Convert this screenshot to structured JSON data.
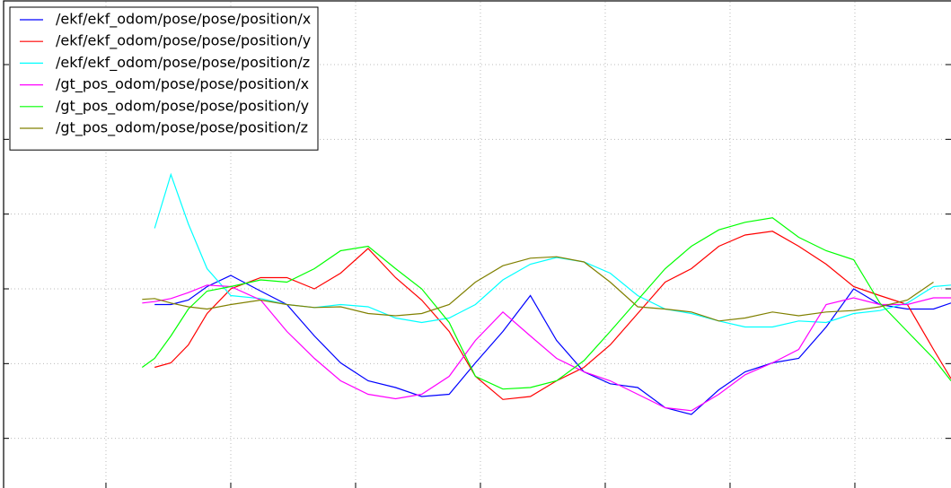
{
  "chart_data": {
    "type": "line",
    "x": [
      1.29,
      1.39,
      1.52,
      1.66,
      1.81,
      2.0,
      2.24,
      2.45,
      2.67,
      2.88,
      3.1,
      3.32,
      3.53,
      3.75,
      3.96,
      4.18,
      4.4,
      4.61,
      4.83,
      5.04,
      5.26,
      5.48,
      5.69,
      5.91,
      6.12,
      6.34,
      6.55,
      6.77,
      6.99,
      7.2,
      7.42,
      7.63,
      7.77
    ],
    "series": [
      {
        "name": "/ekf/ekf_odom/pose/pose/position/x",
        "color": "#0000ff",
        "values": [
          null,
          1.79,
          1.79,
          1.85,
          2.03,
          2.18,
          1.97,
          1.79,
          1.37,
          1.01,
          0.77,
          0.68,
          0.56,
          0.59,
          1.01,
          1.43,
          1.91,
          1.31,
          0.89,
          0.73,
          0.68,
          0.41,
          0.32,
          0.65,
          0.89,
          1.01,
          1.07,
          1.49,
          2.0,
          1.79,
          1.73,
          1.73,
          1.81
        ]
      },
      {
        "name": "/ekf/ekf_odom/pose/pose/position/y",
        "color": "#ff0000",
        "values": [
          null,
          0.95,
          1.01,
          1.25,
          1.67,
          2.0,
          2.15,
          2.15,
          2.0,
          2.21,
          2.54,
          2.15,
          1.85,
          1.43,
          0.83,
          0.52,
          0.56,
          0.77,
          0.95,
          1.25,
          1.67,
          2.09,
          2.27,
          2.57,
          2.72,
          2.77,
          2.57,
          2.33,
          2.03,
          1.91,
          1.79,
          1.19,
          0.8
        ]
      },
      {
        "name": "/ekf/ekf_odom/pose/pose/position/z",
        "color": "#00ffff",
        "values": [
          null,
          2.81,
          3.53,
          2.87,
          2.27,
          1.91,
          1.87,
          1.79,
          1.75,
          1.79,
          1.76,
          1.61,
          1.55,
          1.61,
          1.79,
          2.12,
          2.33,
          2.42,
          2.36,
          2.21,
          1.91,
          1.73,
          1.67,
          1.57,
          1.49,
          1.49,
          1.57,
          1.55,
          1.67,
          1.71,
          1.81,
          2.03,
          2.05
        ]
      },
      {
        "name": "/gt_pos_odom/pose/pose/position/x",
        "color": "#ff00ff",
        "values": [
          1.81,
          1.83,
          1.87,
          1.95,
          2.05,
          2.03,
          1.85,
          1.43,
          1.07,
          0.77,
          0.59,
          0.53,
          0.59,
          0.83,
          1.31,
          1.69,
          1.37,
          1.07,
          0.89,
          0.77,
          0.59,
          0.41,
          0.37,
          0.59,
          0.85,
          1.01,
          1.19,
          1.79,
          1.88,
          1.79,
          1.79,
          1.88,
          1.88
        ]
      },
      {
        "name": "/gt_pos_odom/pose/pose/position/y",
        "color": "#00ff00",
        "values": [
          0.95,
          1.07,
          1.37,
          1.73,
          1.97,
          2.03,
          2.12,
          2.09,
          2.27,
          2.51,
          2.57,
          2.27,
          2.0,
          1.55,
          0.83,
          0.66,
          0.68,
          0.77,
          1.04,
          1.43,
          1.85,
          2.27,
          2.57,
          2.79,
          2.89,
          2.95,
          2.69,
          2.51,
          2.39,
          1.81,
          1.43,
          1.07,
          0.77
        ]
      },
      {
        "name": "/gt_pos_odom/pose/pose/position/z",
        "color": "#808000",
        "values": [
          1.86,
          1.87,
          1.81,
          1.76,
          1.73,
          1.79,
          1.85,
          1.79,
          1.75,
          1.76,
          1.67,
          1.64,
          1.67,
          1.79,
          2.09,
          2.31,
          2.41,
          2.43,
          2.36,
          2.09,
          1.76,
          1.73,
          1.69,
          1.57,
          1.61,
          1.69,
          1.64,
          1.69,
          1.71,
          1.76,
          1.85,
          2.09,
          null
        ]
      }
    ],
    "xlim": [
      0.18,
      7.77
    ],
    "xticks": [
      1,
      2,
      3,
      4,
      5,
      6,
      7
    ],
    "ylim": [
      -0.64,
      5.84
    ],
    "yticks": [
      0,
      1,
      2,
      3,
      4,
      5
    ],
    "grid": true,
    "legend": "upper left"
  }
}
